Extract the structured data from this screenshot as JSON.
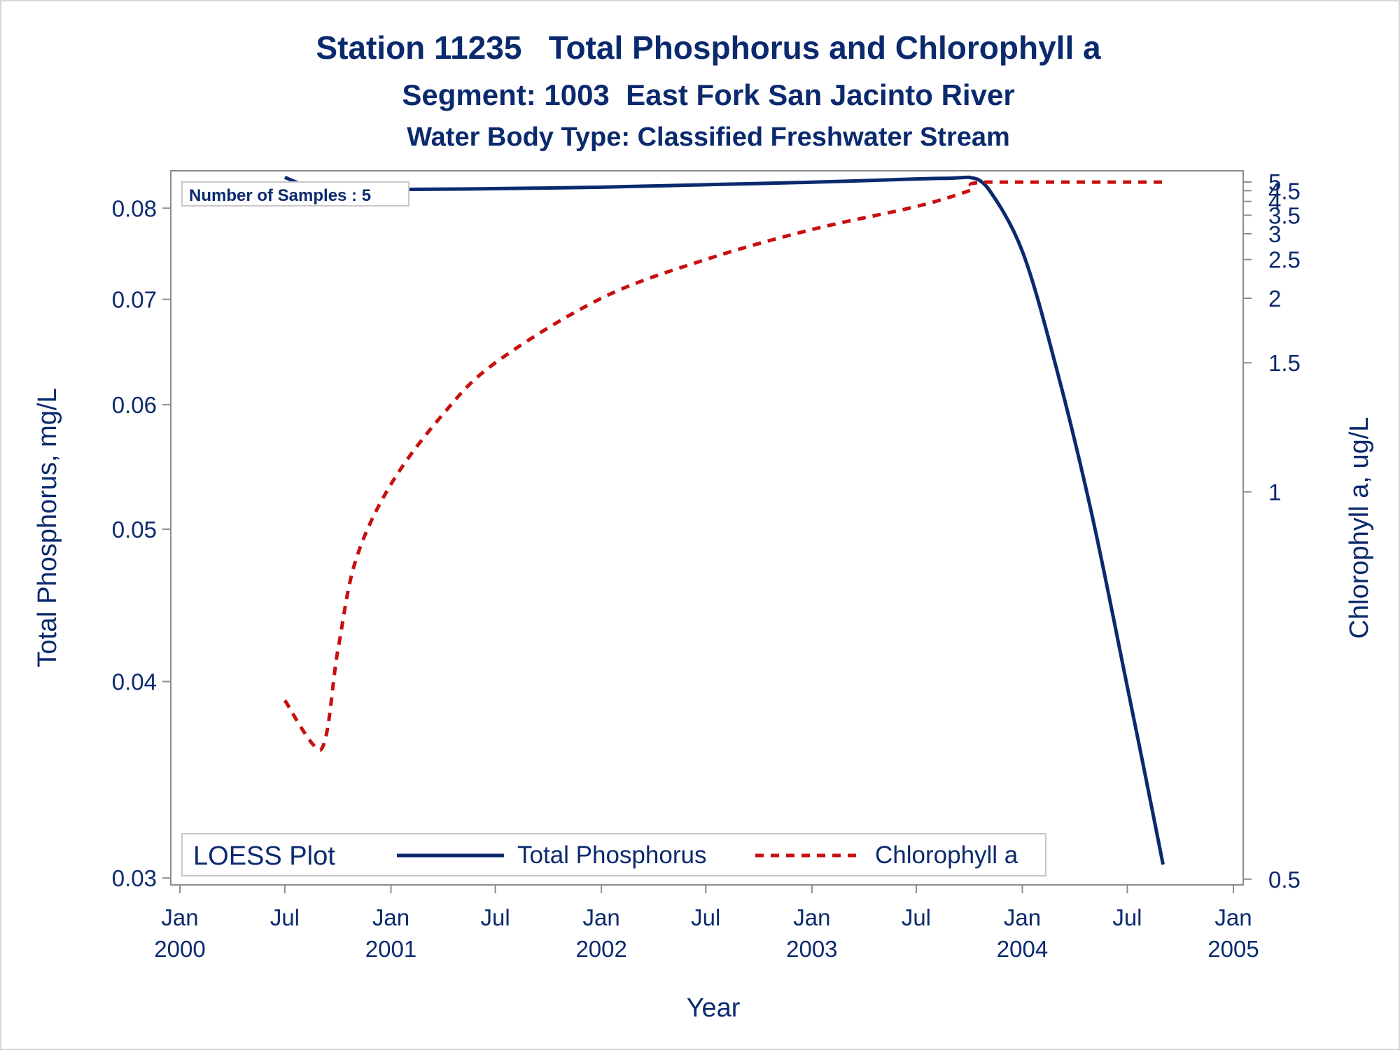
{
  "chart_data": {
    "type": "line",
    "title": "Station 11235   Total Phosphorus and Chlorophyll a",
    "subtitle": "Segment: 1003  East Fork San Jacinto River",
    "subtitle2": "Water Body Type: Classified Freshwater Stream",
    "xlabel": "Year",
    "ylabel_left": "Total Phosphorus, mg/L",
    "ylabel_right": "Chlorophyll a, ug/L",
    "x_range": [
      "2000-01-01",
      "2005-01-01"
    ],
    "x_ticks": [
      {
        "date": "2000-01-01",
        "label1": "Jan",
        "label2": "2000"
      },
      {
        "date": "2000-07-01",
        "label1": "Jul",
        "label2": ""
      },
      {
        "date": "2001-01-01",
        "label1": "Jan",
        "label2": "2001"
      },
      {
        "date": "2001-07-01",
        "label1": "Jul",
        "label2": ""
      },
      {
        "date": "2002-01-01",
        "label1": "Jan",
        "label2": "2002"
      },
      {
        "date": "2002-07-01",
        "label1": "Jul",
        "label2": ""
      },
      {
        "date": "2003-01-01",
        "label1": "Jan",
        "label2": "2003"
      },
      {
        "date": "2003-07-01",
        "label1": "Jul",
        "label2": ""
      },
      {
        "date": "2004-01-01",
        "label1": "Jan",
        "label2": "2004"
      },
      {
        "date": "2004-07-01",
        "label1": "Jul",
        "label2": ""
      },
      {
        "date": "2005-01-01",
        "label1": "Jan",
        "label2": "2005"
      }
    ],
    "y_left": {
      "scale": "log",
      "range": [
        0.0297,
        0.0845
      ],
      "ticks": [
        0.03,
        0.04,
        0.05,
        0.06,
        0.07,
        0.08
      ],
      "tick_labels": [
        "0.03",
        "0.04",
        "0.05",
        "0.06",
        "0.07",
        "0.08"
      ]
    },
    "y_right": {
      "scale": "reciprocal",
      "range": [
        0.4963,
        5.85
      ],
      "ticks": [
        0.5,
        1,
        1.5,
        2,
        2.5,
        3,
        3.5,
        4,
        4.5,
        5
      ],
      "tick_labels": [
        "0.5",
        "1",
        "1.5",
        "2",
        "2.5",
        "3",
        "3.5",
        "4",
        "4.5",
        "5"
      ]
    },
    "series": [
      {
        "name": "Total Phosphorus",
        "axis": "left",
        "color": "#0b2a6e",
        "style": "solid",
        "points": [
          [
            "2000-07-01",
            0.0837
          ],
          [
            "2000-08-01",
            0.0828
          ],
          [
            "2000-09-01",
            0.0822
          ],
          [
            "2000-12-01",
            0.0822
          ],
          [
            "2001-06-01",
            0.0823
          ],
          [
            "2002-01-01",
            0.0825
          ],
          [
            "2002-07-01",
            0.0828
          ],
          [
            "2003-01-01",
            0.0831
          ],
          [
            "2003-07-01",
            0.0835
          ],
          [
            "2003-09-01",
            0.0836
          ],
          [
            "2003-10-01",
            0.0837
          ],
          [
            "2003-11-01",
            0.0825
          ],
          [
            "2004-01-01",
            0.0751
          ],
          [
            "2004-03-01",
            0.0631
          ],
          [
            "2004-05-01",
            0.051
          ],
          [
            "2004-07-01",
            0.0397
          ],
          [
            "2004-08-01",
            0.0349
          ],
          [
            "2004-09-01",
            0.0306
          ]
        ]
      },
      {
        "name": "Chlorophyll a",
        "axis": "right",
        "color": "#c80f0f",
        "style": "dashed",
        "points": [
          [
            "2000-07-01",
            0.65
          ],
          [
            "2000-09-01",
            0.6
          ],
          [
            "2000-10-01",
            0.71
          ],
          [
            "2000-11-01",
            0.85
          ],
          [
            "2001-01-01",
            1.02
          ],
          [
            "2001-04-01",
            1.25
          ],
          [
            "2001-07-01",
            1.5
          ],
          [
            "2002-01-01",
            2.0
          ],
          [
            "2002-07-01",
            2.5
          ],
          [
            "2003-01-01",
            3.1
          ],
          [
            "2003-07-01",
            3.8
          ],
          [
            "2003-10-01",
            4.5
          ],
          [
            "2003-11-01",
            5.0
          ],
          [
            "2004-09-01",
            5.0
          ]
        ]
      }
    ],
    "legend": {
      "title": "LOESS Plot",
      "placement": "bottom-left",
      "entries": [
        "Total Phosphorus",
        "Chlorophyll a"
      ]
    },
    "annotation": "Number of Samples : 5",
    "grid": false
  }
}
